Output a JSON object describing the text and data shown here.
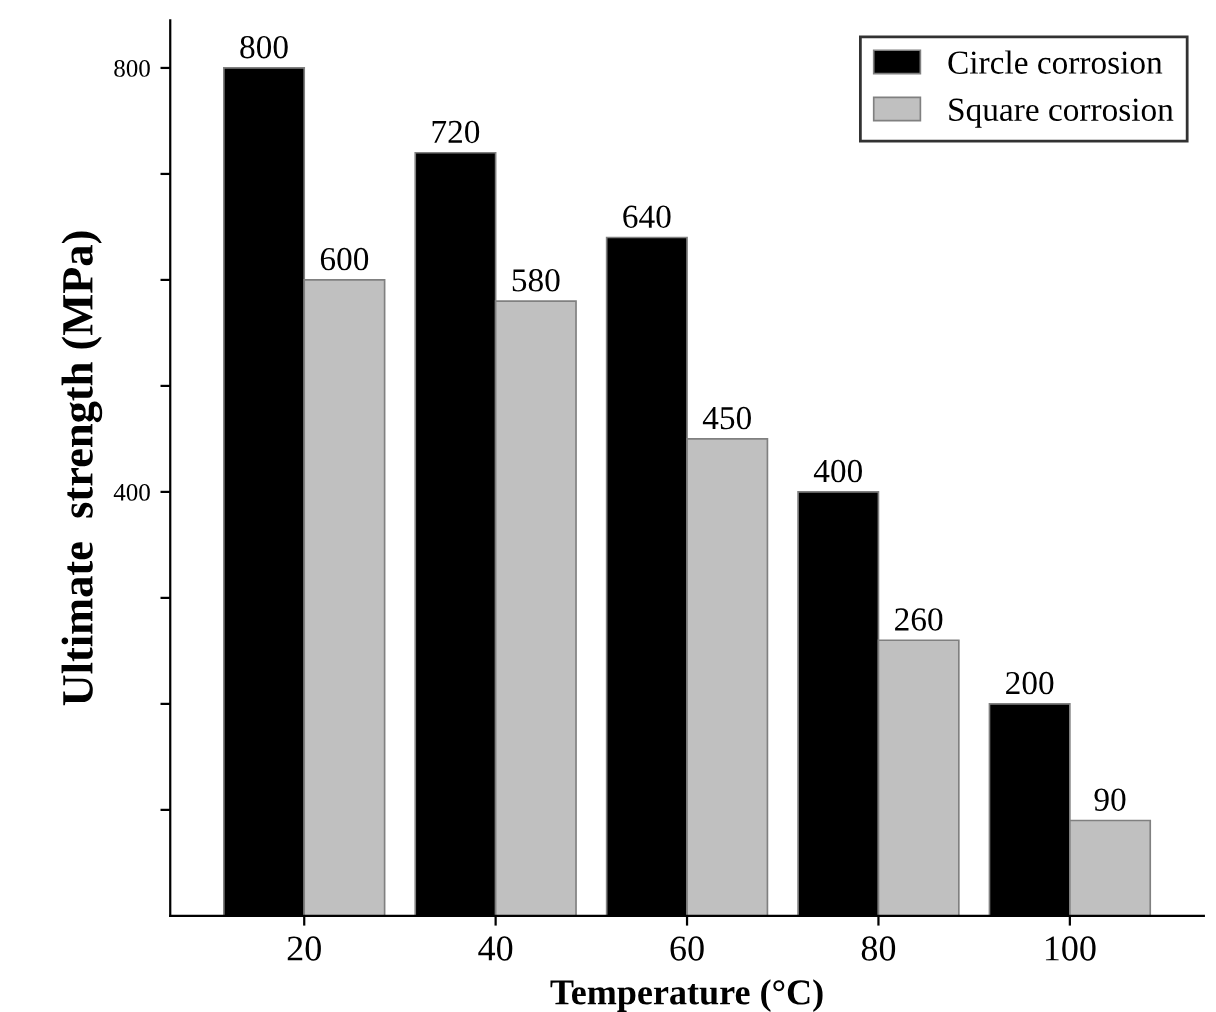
{
  "chart_data": {
    "type": "bar",
    "xlabel": "Temperature (°C)",
    "ylabel": "Ultimate  strength (MPa)",
    "categories": [
      "20",
      "40",
      "60",
      "80",
      "100"
    ],
    "series": [
      {
        "name": "Circle corrosion",
        "color": "#000000",
        "values": [
          800,
          720,
          640,
          400,
          200
        ]
      },
      {
        "name": "Square corrosion",
        "color": "#c0c0c0",
        "values": [
          600,
          580,
          450,
          260,
          90
        ]
      }
    ],
    "ylim": [
      0,
      845
    ],
    "yticks": [
      {
        "value": 100,
        "label": null
      },
      {
        "value": 200,
        "label": null
      },
      {
        "value": 300,
        "label": null
      },
      400,
      {
        "value": 500,
        "label": null
      },
      {
        "value": 600,
        "label": null
      },
      {
        "value": 700,
        "label": null
      },
      800
    ],
    "data_labels": true,
    "legend": "top right",
    "grid": false
  }
}
